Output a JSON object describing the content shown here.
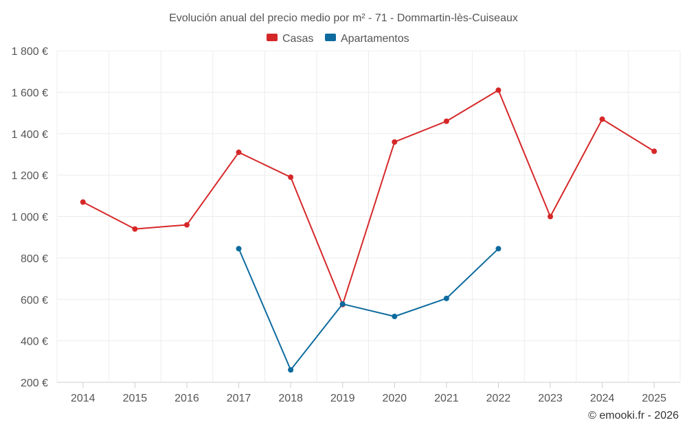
{
  "chart_data": {
    "type": "line",
    "title": "Evolución anual del precio medio por m² - 71 - Dommartin-lès-Cuiseaux",
    "categories": [
      "2014",
      "2015",
      "2016",
      "2017",
      "2018",
      "2019",
      "2020",
      "2021",
      "2022",
      "2023",
      "2024",
      "2025"
    ],
    "series": [
      {
        "name": "Casas",
        "color": "#d62728",
        "values": [
          1070,
          940,
          960,
          1310,
          1190,
          575,
          1360,
          1460,
          1610,
          1000,
          1470,
          1315
        ]
      },
      {
        "name": "Apartamentos",
        "color": "#0d6b9e",
        "values": [
          null,
          null,
          null,
          845,
          260,
          578,
          518,
          605,
          845,
          null,
          null,
          null
        ]
      }
    ],
    "y_ticks": [
      200,
      400,
      600,
      800,
      1000,
      1200,
      1400,
      1600,
      1800
    ],
    "y_tick_labels": [
      "200 €",
      "400 €",
      "600 €",
      "800 €",
      "1 000 €",
      "1 200 €",
      "1 400 €",
      "1 600 €",
      "1 800 €"
    ],
    "ylim": [
      200,
      1800
    ],
    "xlabel": "",
    "ylabel": "",
    "grid": true,
    "legend_position": "top-center"
  },
  "credit": "© emooki.fr - 2026"
}
